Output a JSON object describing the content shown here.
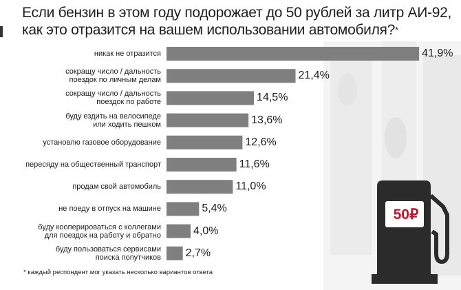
{
  "title": {
    "line1": "Если бензин в этом году подорожает до 50 рублей за литр АИ-92,",
    "line2": "как это отразится на вашем использовании автомобиля?",
    "star": "*"
  },
  "footnote": "* каждый респондент мог указать несколько вариантов ответа",
  "price_tag": "50₽",
  "colors": {
    "bar": "#7f7f7f",
    "accent": "#c8102e",
    "pump": "#2b2b2b"
  },
  "chart_data": {
    "type": "bar",
    "orientation": "horizontal",
    "unit": "%",
    "categories": [
      [
        "никак не отразится"
      ],
      [
        "сокращу число / дальность",
        "поездок по личным делам"
      ],
      [
        "сокращу число / дальность",
        "поездок по работе"
      ],
      [
        "буду ездить на велосипеде",
        "или ходить пешком"
      ],
      [
        "установлю газовое оборудование"
      ],
      [
        "пересяду на общественный транспорт"
      ],
      [
        "продам свой автомобиль"
      ],
      [
        "не поеду в отпуск на машине"
      ],
      [
        "буду кооперироваться с коллегами",
        "для поездок на работу и обратно"
      ],
      [
        "буду пользоваться сервисами",
        "поиска попутчиков"
      ]
    ],
    "values": [
      41.9,
      21.4,
      14.5,
      13.6,
      12.6,
      11.6,
      11.0,
      5.4,
      4.0,
      2.7
    ],
    "value_labels": [
      "41,9%",
      "21,4%",
      "14,5%",
      "13,6%",
      "12,6%",
      "11,6%",
      "11,0%",
      "5,4%",
      "4,0%",
      "2,7%"
    ],
    "xlim": [
      0,
      42
    ]
  }
}
